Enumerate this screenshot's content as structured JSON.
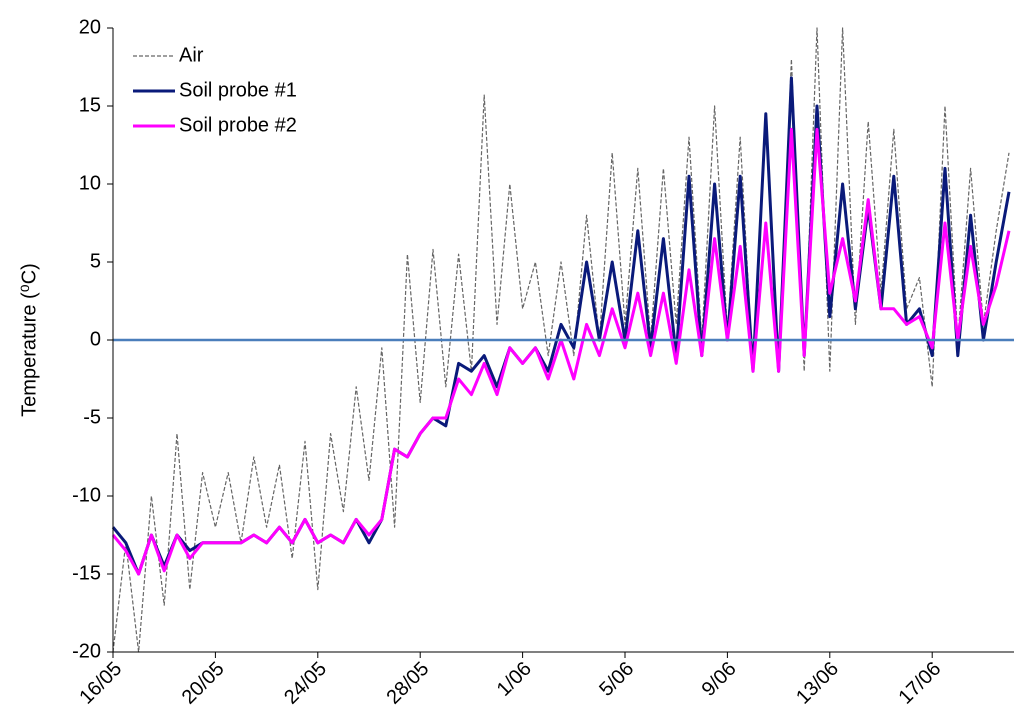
{
  "chart_data": {
    "type": "line",
    "y_label": "Temperature (⁰C)",
    "categories": [
      "16/05",
      null,
      null,
      null,
      null,
      null,
      null,
      null,
      "20/05",
      null,
      null,
      null,
      null,
      null,
      null,
      null,
      "24/05",
      null,
      null,
      null,
      null,
      null,
      null,
      null,
      "28/05",
      null,
      null,
      null,
      null,
      null,
      null,
      null,
      "1/06",
      null,
      null,
      null,
      null,
      null,
      null,
      null,
      "5/06",
      null,
      null,
      null,
      null,
      null,
      null,
      null,
      "9/06",
      null,
      null,
      null,
      null,
      null,
      null,
      null,
      "13/06",
      null,
      null,
      null,
      null,
      null,
      null,
      null,
      "17/06",
      null,
      null,
      null,
      null,
      null,
      null
    ],
    "series": [
      {
        "name": "Air",
        "color": "#666666",
        "dashed": true,
        "width": 1.2,
        "values": [
          -20,
          -13,
          -20,
          -10,
          -17,
          -6,
          -16,
          -8.5,
          -12,
          -8.5,
          -13,
          -7.5,
          -12,
          -8,
          -14,
          -6.5,
          -16,
          -6,
          -11,
          -3,
          -9,
          -0.5,
          -12,
          5.5,
          -4,
          5.8,
          -3,
          5.5,
          -2,
          15.7,
          1,
          10,
          2,
          5,
          -1,
          5,
          -1,
          8,
          0,
          12,
          1,
          11,
          0,
          11,
          1,
          13,
          0,
          15,
          0.5,
          13,
          -2,
          14,
          -2,
          18,
          -2,
          20,
          -2,
          20,
          1,
          14,
          3,
          13.5,
          2,
          4,
          -3,
          15,
          0,
          11,
          1,
          7,
          12
        ]
      },
      {
        "name": "Soil probe #1",
        "color": "#0a1a7a",
        "dashed": false,
        "width": 3,
        "values": [
          -12,
          -13,
          -15,
          -12.5,
          -14.5,
          -12.5,
          -13.5,
          -13,
          -13,
          -13,
          -13,
          -12.5,
          -13,
          -12,
          -13,
          -11.5,
          -13,
          -12.5,
          -13,
          -11.5,
          -13,
          -11.5,
          -7,
          -7.5,
          -6,
          -5,
          -5.5,
          -1.5,
          -2,
          -1,
          -3,
          -0.5,
          -1.5,
          -0.5,
          -2,
          1,
          -0.5,
          5,
          0,
          5,
          0,
          7,
          -0.5,
          6.5,
          -1,
          10.5,
          -1,
          10,
          0,
          10.5,
          -2,
          14.5,
          -2,
          16.8,
          -1,
          15,
          1.5,
          10,
          2,
          8.5,
          2,
          10.5,
          1,
          2,
          -1,
          11,
          -1,
          8,
          0,
          5,
          9.5
        ]
      },
      {
        "name": "Soil probe #2",
        "color": "#ff00ff",
        "dashed": false,
        "width": 3,
        "values": [
          -12.5,
          -13.5,
          -15,
          -12.5,
          -14.8,
          -12.5,
          -14,
          -13,
          -13,
          -13,
          -13,
          -12.5,
          -13,
          -12,
          -13,
          -11.5,
          -13,
          -12.5,
          -13,
          -11.5,
          -12.5,
          -11.5,
          -7,
          -7.5,
          -6,
          -5,
          -5,
          -2.5,
          -3.5,
          -1.5,
          -3.5,
          -0.5,
          -1.5,
          -0.5,
          -2.5,
          0,
          -2.5,
          1,
          -1,
          2,
          -0.5,
          3,
          -1,
          3,
          -1.5,
          4.5,
          -1,
          6.5,
          0,
          6,
          -2,
          7.5,
          -2,
          13.5,
          -1,
          13.5,
          3,
          6.5,
          2.5,
          9,
          2,
          2,
          1,
          1.5,
          -0.5,
          7.5,
          0,
          6,
          1,
          3.5,
          7
        ]
      }
    ],
    "reference_line": {
      "value": 0,
      "color": "#4a7ebb"
    },
    "ylim": [
      -20,
      20
    ],
    "yticks": [
      -20,
      -15,
      -10,
      -5,
      0,
      5,
      10,
      15,
      20
    ],
    "legend": "top-left"
  }
}
